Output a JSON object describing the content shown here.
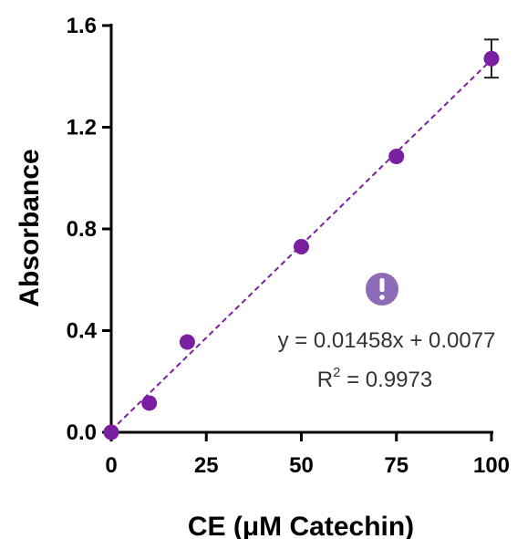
{
  "chart_data": {
    "type": "scatter",
    "xlabel": "CE (μM Catechin)",
    "ylabel": "Absorbance",
    "xlim": [
      0,
      100
    ],
    "ylim": [
      0,
      1.6
    ],
    "x_ticks": [
      0,
      25,
      50,
      75,
      100
    ],
    "y_ticks": [
      0.0,
      0.4,
      0.8,
      1.2,
      1.6
    ],
    "x_tick_labels": [
      "0",
      "25",
      "50",
      "75",
      "100"
    ],
    "y_tick_labels": [
      "0.0",
      "0.4",
      "0.8",
      "1.2",
      "1.6"
    ],
    "grid": false,
    "series": [
      {
        "x": [
          0,
          10,
          20,
          50,
          75,
          100
        ],
        "y": [
          0.0,
          0.115,
          0.355,
          0.73,
          1.085,
          1.47
        ],
        "error": [
          0,
          0,
          0,
          0,
          0,
          0.075
        ],
        "color": "#7a1fa2"
      }
    ],
    "fit": {
      "slope": 0.01458,
      "intercept": 0.0077,
      "style": "dashed",
      "color": "#7a1fa2",
      "equation": "y = 0.01458x + 0.0077",
      "r2_prefix": "R",
      "r2_sup": "2",
      "r2_value": " = 0.9973"
    },
    "annotation_icon": "exclamation-circle-icon",
    "annotation_icon_color": "#8e6bb8"
  }
}
